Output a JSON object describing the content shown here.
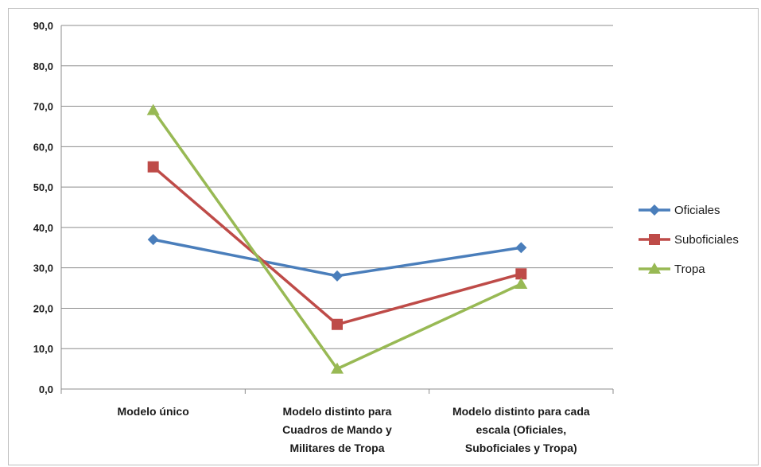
{
  "chart_data": {
    "type": "line",
    "categories": [
      [
        "Modelo único"
      ],
      [
        "Modelo distinto para",
        "Cuadros de Mando y",
        "Militares de Tropa"
      ],
      [
        "Modelo distinto para cada",
        "escala (Oficiales,",
        "Suboficiales y Tropa)"
      ]
    ],
    "series": [
      {
        "name": "Oficiales",
        "values": [
          37.0,
          28.0,
          35.0
        ],
        "color": "#4a7ebb",
        "marker": "diamond"
      },
      {
        "name": "Suboficiales",
        "values": [
          55.0,
          16.0,
          28.5
        ],
        "color": "#be4b48",
        "marker": "square"
      },
      {
        "name": "Tropa",
        "values": [
          69.0,
          5.0,
          26.0
        ],
        "color": "#98b954",
        "marker": "triangle"
      }
    ],
    "ylim": [
      0,
      90
    ],
    "yticks": [
      "0,0",
      "10,0",
      "20,0",
      "30,0",
      "40,0",
      "50,0",
      "60,0",
      "70,0",
      "80,0",
      "90,0"
    ],
    "grid": true,
    "legend_position": "right"
  }
}
